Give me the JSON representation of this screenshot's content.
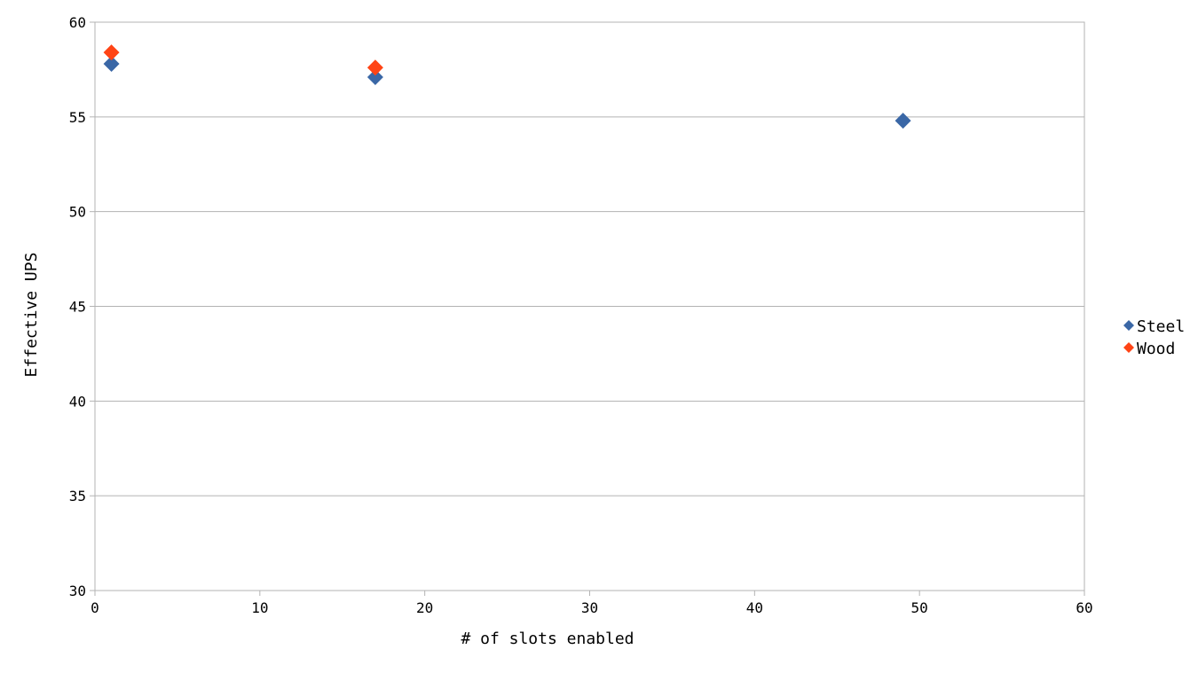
{
  "chart_data": {
    "type": "scatter",
    "title": "",
    "xlabel": "# of slots enabled",
    "ylabel": "Effective UPS",
    "xlim": [
      0,
      60
    ],
    "ylim": [
      30,
      60
    ],
    "xticks": [
      0,
      10,
      20,
      30,
      40,
      50,
      60
    ],
    "yticks": [
      30,
      35,
      40,
      45,
      50,
      55,
      60
    ],
    "grid": "horizontal",
    "legend_position": "right",
    "marker": "diamond",
    "series": [
      {
        "name": "Steel",
        "color": "#3a67a6",
        "points": [
          {
            "x": 1,
            "y": 57.8
          },
          {
            "x": 17,
            "y": 57.1
          },
          {
            "x": 49,
            "y": 54.8
          }
        ]
      },
      {
        "name": "Wood",
        "color": "#ff4415",
        "points": [
          {
            "x": 1,
            "y": 58.4
          },
          {
            "x": 17,
            "y": 57.6
          }
        ]
      }
    ]
  }
}
